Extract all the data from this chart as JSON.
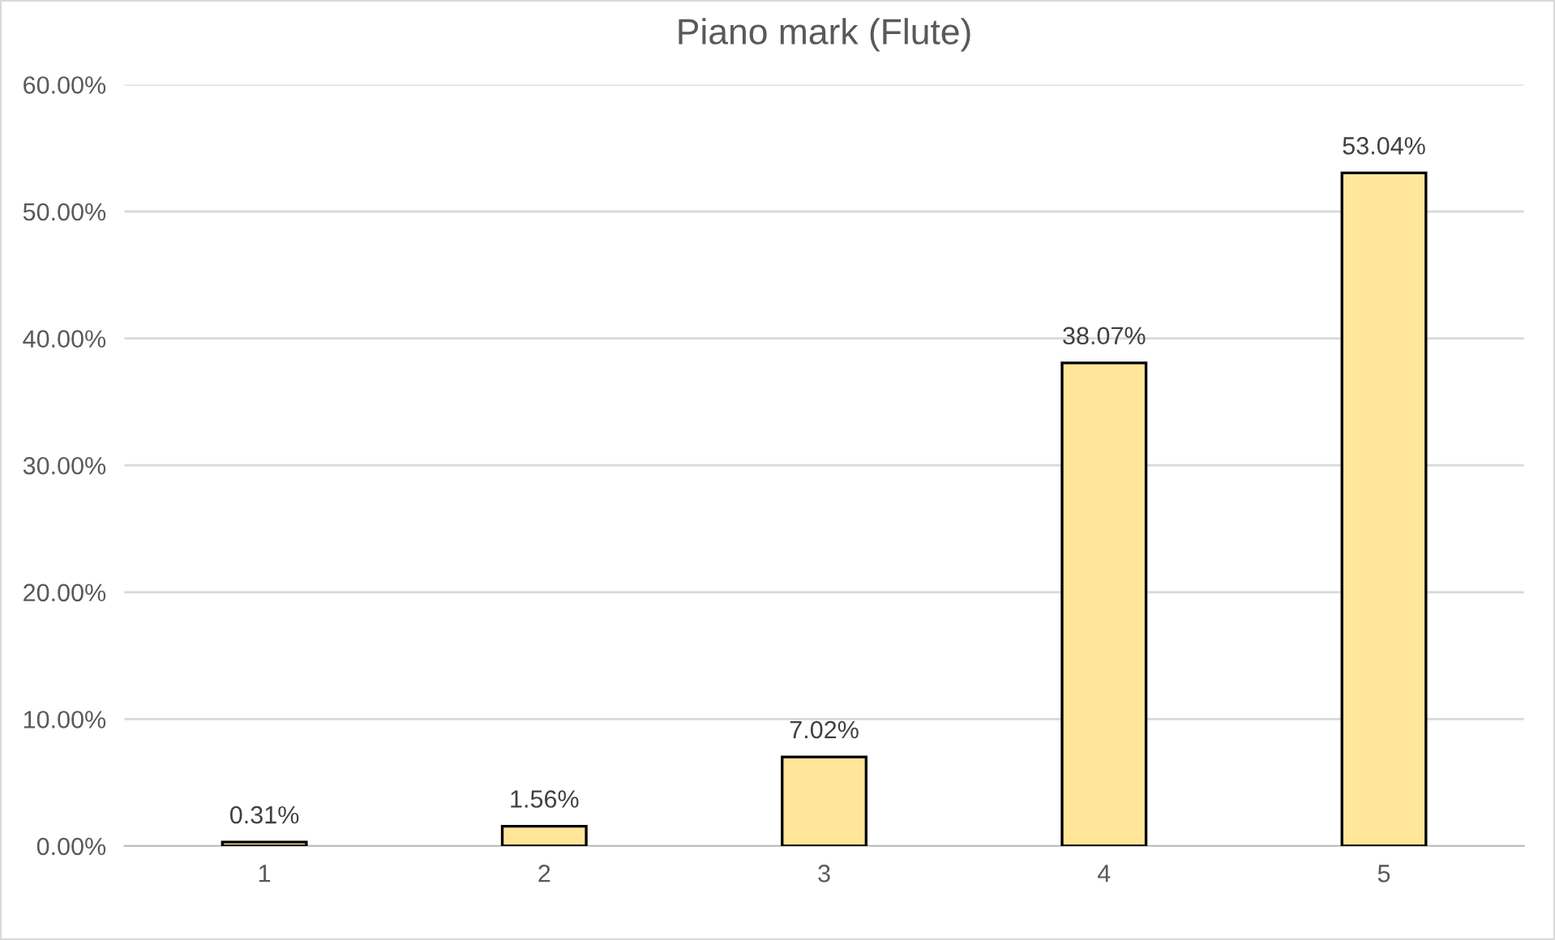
{
  "chart_data": {
    "type": "bar",
    "title": "Piano mark (Flute)",
    "categories": [
      "1",
      "2",
      "3",
      "4",
      "5"
    ],
    "values": [
      0.31,
      1.56,
      7.02,
      38.07,
      53.04
    ],
    "value_labels": [
      "0.31%",
      "1.56%",
      "7.02%",
      "38.07%",
      "53.04%"
    ],
    "color": "#ffe699",
    "ylim": [
      0,
      60
    ],
    "yticks": [
      {
        "value": 0,
        "label": "0.00%"
      },
      {
        "value": 10,
        "label": "10.00%"
      },
      {
        "value": 20,
        "label": "20.00%"
      },
      {
        "value": 30,
        "label": "30.00%"
      },
      {
        "value": 40,
        "label": "40.00%"
      },
      {
        "value": 50,
        "label": "50.00%"
      },
      {
        "value": 60,
        "label": "60.00%"
      }
    ],
    "grid": "y",
    "legend": false
  }
}
